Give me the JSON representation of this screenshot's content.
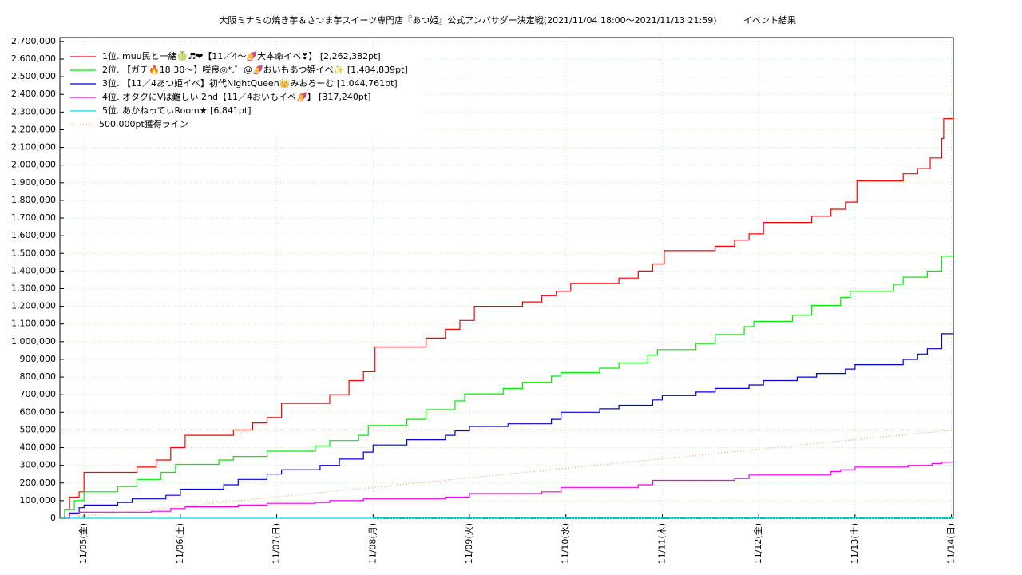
{
  "chart_data": {
    "type": "line",
    "step": true,
    "title": "大阪ミナミの焼き芋＆さつま芋スイーツ専門店『あつ姫』公式アンバサダー決定戦(2021/11/04 18:00～2021/11/13 21:59)",
    "subtitle": "イベント結果",
    "xlim": [
      4.75,
      14.02
    ],
    "xticks": [
      {
        "value": 5,
        "label": "11/05(金)"
      },
      {
        "value": 6,
        "label": "11/06(土)"
      },
      {
        "value": 7,
        "label": "11/07(日)"
      },
      {
        "value": 8,
        "label": "11/08(月)"
      },
      {
        "value": 9,
        "label": "11/09(火)"
      },
      {
        "value": 10,
        "label": "11/10(水)"
      },
      {
        "value": 11,
        "label": "11/11(木)"
      },
      {
        "value": 12,
        "label": "11/12(金)"
      },
      {
        "value": 13,
        "label": "11/13(土)"
      },
      {
        "value": 14,
        "label": "11/14(日)"
      }
    ],
    "ylim": [
      0,
      2722000
    ],
    "yticks": [
      0,
      {
        "value": 100000,
        "label": "100,000"
      },
      {
        "value": 200000,
        "label": "200,000"
      },
      {
        "value": 300000,
        "label": "300,000"
      },
      {
        "value": 400000,
        "label": "400,000"
      },
      {
        "value": 500000,
        "label": "500,000"
      },
      {
        "value": 600000,
        "label": "600,000"
      },
      {
        "value": 700000,
        "label": "700,000"
      },
      {
        "value": 800000,
        "label": "800,000"
      },
      {
        "value": 900000,
        "label": "900,000"
      },
      {
        "value": 1000000,
        "label": "1,000,000"
      },
      {
        "value": 1100000,
        "label": "1,100,000"
      },
      {
        "value": 1200000,
        "label": "1,200,000"
      },
      {
        "value": 1300000,
        "label": "1,300,000"
      },
      {
        "value": 1400000,
        "label": "1,400,000"
      },
      {
        "value": 1500000,
        "label": "1,500,000"
      },
      {
        "value": 1600000,
        "label": "1,600,000"
      },
      {
        "value": 1700000,
        "label": "1,700,000"
      },
      {
        "value": 1800000,
        "label": "1,800,000"
      },
      {
        "value": 1900000,
        "label": "1,900,000"
      },
      {
        "value": 2000000,
        "label": "2,000,000"
      },
      {
        "value": 2100000,
        "label": "2,100,000"
      },
      {
        "value": 2200000,
        "label": "2,200,000"
      },
      {
        "value": 2300000,
        "label": "2,300,000"
      },
      {
        "value": 2400000,
        "label": "2,400,000"
      },
      {
        "value": 2500000,
        "label": "2,500,000"
      },
      {
        "value": 2600000,
        "label": "2,600,000"
      },
      {
        "value": 2700000,
        "label": "2,700,000"
      }
    ],
    "grid": true,
    "legend": "upper left",
    "series": [
      {
        "name": "1位. muu民と一緒🍈♬❤【11／4〜🍠大本命イベ❣】 [2,262,382pt]",
        "color": "#ff0000",
        "x": [
          4.75,
          4.8,
          4.85,
          4.95,
          5.0,
          5.55,
          5.75,
          5.9,
          6.05,
          6.55,
          6.75,
          6.9,
          7.05,
          7.55,
          7.75,
          7.9,
          8.02,
          8.55,
          8.75,
          8.9,
          9.05,
          9.55,
          9.75,
          9.9,
          10.05,
          10.55,
          10.75,
          10.9,
          11.02,
          11.55,
          11.75,
          11.9,
          12.05,
          12.55,
          12.75,
          12.9,
          13.02,
          13.5,
          13.65,
          13.78,
          13.9,
          13.92,
          14.02
        ],
        "values": [
          0,
          50000,
          120000,
          150000,
          260000,
          290000,
          330000,
          400000,
          470000,
          500000,
          540000,
          570000,
          650000,
          700000,
          780000,
          830000,
          970000,
          1020000,
          1070000,
          1120000,
          1200000,
          1225000,
          1260000,
          1285000,
          1330000,
          1360000,
          1400000,
          1440000,
          1515000,
          1540000,
          1575000,
          1610000,
          1675000,
          1710000,
          1750000,
          1790000,
          1910000,
          1950000,
          1980000,
          2040000,
          2150000,
          2262382,
          2262382
        ]
      },
      {
        "name": "2位. 【ガチ🔥18:30〜】咲良◎*.゜@🍠おいもあつ姫イベ✨ [1,484,839pt]",
        "color": "#00ee00",
        "x": [
          4.75,
          4.8,
          4.9,
          5.0,
          5.35,
          5.55,
          5.8,
          5.95,
          6.4,
          6.55,
          6.9,
          7.4,
          7.55,
          7.85,
          7.95,
          8.35,
          8.55,
          8.85,
          8.95,
          9.35,
          9.55,
          9.85,
          9.95,
          10.35,
          10.55,
          10.85,
          10.95,
          11.35,
          11.55,
          11.85,
          11.95,
          12.35,
          12.55,
          12.85,
          12.95,
          13.4,
          13.5,
          13.75,
          13.9,
          14.02
        ],
        "values": [
          0,
          50000,
          100000,
          150000,
          180000,
          220000,
          260000,
          305000,
          330000,
          350000,
          380000,
          410000,
          440000,
          470000,
          525000,
          560000,
          615000,
          665000,
          705000,
          735000,
          770000,
          805000,
          825000,
          850000,
          880000,
          925000,
          955000,
          990000,
          1040000,
          1085000,
          1115000,
          1150000,
          1205000,
          1250000,
          1285000,
          1325000,
          1365000,
          1400000,
          1484839,
          1484839
        ]
      },
      {
        "name": "3位. 【11／4あつ姫イベ】初代NightQueen👑みおるーむ [1,044,761pt]",
        "color": "#0000dd",
        "x": [
          4.75,
          4.85,
          4.95,
          5.0,
          5.35,
          5.5,
          5.85,
          6.0,
          6.45,
          6.6,
          6.9,
          7.05,
          7.45,
          7.65,
          7.9,
          8.0,
          8.35,
          8.75,
          8.85,
          9.0,
          9.4,
          9.85,
          9.95,
          10.35,
          10.55,
          10.9,
          11.0,
          11.35,
          11.55,
          11.9,
          12.05,
          12.4,
          12.6,
          12.9,
          13.0,
          13.5,
          13.65,
          13.75,
          13.9,
          14.02
        ],
        "values": [
          0,
          30000,
          60000,
          75000,
          90000,
          110000,
          130000,
          165000,
          190000,
          220000,
          250000,
          275000,
          300000,
          335000,
          375000,
          415000,
          445000,
          470000,
          495000,
          520000,
          535000,
          560000,
          600000,
          620000,
          640000,
          670000,
          695000,
          715000,
          735000,
          755000,
          780000,
          800000,
          820000,
          845000,
          870000,
          900000,
          930000,
          960000,
          1044761,
          1044761
        ]
      },
      {
        "name": "4位. オタクにVは難しい 2nd【11／4おいもイベ🍠】 [317,240pt]",
        "color": "#ee00ee",
        "x": [
          4.75,
          4.85,
          4.95,
          5.7,
          5.9,
          6.05,
          6.6,
          6.9,
          7.4,
          7.55,
          7.9,
          8.75,
          9.0,
          9.75,
          9.95,
          10.75,
          10.9,
          11.75,
          11.9,
          12.75,
          12.85,
          13.0,
          13.55,
          13.8,
          13.9,
          14.02
        ],
        "values": [
          0,
          25000,
          35000,
          40000,
          55000,
          65000,
          75000,
          85000,
          90000,
          100000,
          110000,
          120000,
          140000,
          150000,
          175000,
          190000,
          215000,
          225000,
          245000,
          265000,
          275000,
          290000,
          300000,
          310000,
          317240,
          317240
        ]
      },
      {
        "name": "5位. あかねってぃRoom★ [6,841pt]",
        "color": "#00dddd",
        "x": [
          4.75,
          8.0,
          14.02
        ],
        "values": [
          0,
          3000,
          6841
        ]
      },
      {
        "name": "500,000pt獲得ライン",
        "color": "#e8a070",
        "dash": "1 3",
        "x": [
          4.75,
          14.02
        ],
        "values": [
          0,
          500000
        ],
        "hline": 500000
      }
    ]
  }
}
